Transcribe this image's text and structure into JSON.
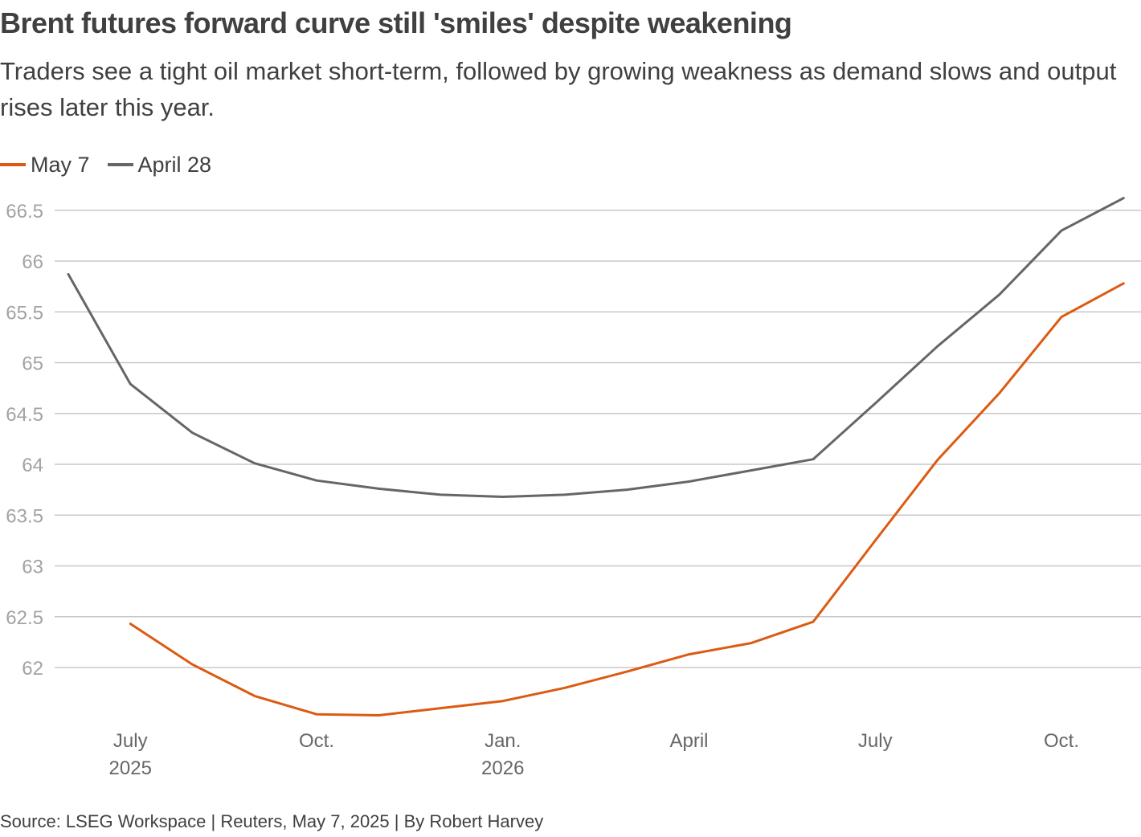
{
  "title": "Brent futures forward curve still 'smiles' despite weakening",
  "subtitle": "Traders see a tight oil market short-term, followed by growing weakness as demand slows and output rises later this year.",
  "source": "Source: LSEG Workspace | Reuters, May 7, 2025 | By Robert Harvey",
  "chart_data": {
    "type": "line",
    "title": "Brent futures forward curve still 'smiles' despite weakening",
    "xlabel": "",
    "ylabel": "",
    "ylim": [
      61.5,
      66.7
    ],
    "yticks": [
      62,
      62.5,
      63,
      63.5,
      64,
      64.5,
      65,
      65.5,
      66,
      66.5
    ],
    "ytick_labels": [
      "62",
      "62.5",
      "63",
      "63.5",
      "64",
      "64.5",
      "65",
      "65.5",
      "66",
      "66.5"
    ],
    "x_ticks": [
      {
        "month_index": 1,
        "label": "July",
        "sublabel": "2025"
      },
      {
        "month_index": 4,
        "label": "Oct.",
        "sublabel": ""
      },
      {
        "month_index": 7,
        "label": "Jan.",
        "sublabel": "2026"
      },
      {
        "month_index": 10,
        "label": "April",
        "sublabel": ""
      },
      {
        "month_index": 13,
        "label": "July",
        "sublabel": ""
      },
      {
        "month_index": 16,
        "label": "Oct.",
        "sublabel": ""
      }
    ],
    "x_note": "month_index 0 = June 2025",
    "series": [
      {
        "name": "May 7",
        "color": "#dc5a12",
        "x": [
          1,
          2,
          3,
          4,
          5,
          6,
          7,
          8,
          9,
          10,
          11,
          12,
          13,
          14,
          15,
          16,
          17
        ],
        "values": [
          62.43,
          62.03,
          61.72,
          61.54,
          61.53,
          61.6,
          61.67,
          61.8,
          61.96,
          62.13,
          62.24,
          62.45,
          63.25,
          64.04,
          64.7,
          65.45,
          65.78
        ]
      },
      {
        "name": "April 28",
        "color": "#666666",
        "x": [
          0,
          1,
          2,
          3,
          4,
          5,
          6,
          7,
          8,
          9,
          10,
          11,
          12,
          13,
          14,
          15,
          16,
          17
        ],
        "values": [
          65.87,
          64.79,
          64.31,
          64.01,
          63.84,
          63.76,
          63.7,
          63.68,
          63.7,
          63.75,
          63.83,
          63.94,
          64.05,
          64.6,
          65.16,
          65.67,
          66.3,
          66.62
        ]
      }
    ]
  }
}
